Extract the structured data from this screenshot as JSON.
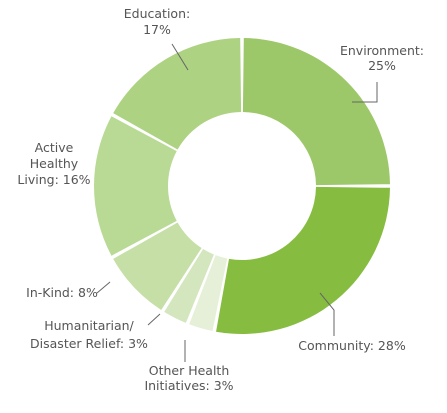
{
  "chart_data": {
    "type": "pie",
    "categories": [
      "Environment",
      "Community",
      "Other Health Initiatives",
      "Humanitarian/ Disaster Relief",
      "In-Kind",
      "Active Healthy Living",
      "Education"
    ],
    "values": [
      25,
      28,
      3,
      3,
      8,
      16,
      17
    ],
    "unit": "%",
    "labels": [
      [
        "Environment:",
        "25%"
      ],
      [
        "Community: 28%"
      ],
      [
        "Other Health",
        "Initiatives: 3%"
      ],
      [
        "Humanitarian/",
        "Disaster Relief: 3%"
      ],
      [
        "In-Kind: 8%"
      ],
      [
        "Active",
        "Healthy",
        "Living: 16%"
      ],
      [
        "Education:",
        "17%"
      ]
    ],
    "colors": [
      "#9dc86a",
      "#86bd40",
      "#e6f0d8",
      "#d3e6bd",
      "#c5dfa6",
      "#b9da94",
      "#add281"
    ],
    "legend": "none",
    "donut": true
  }
}
